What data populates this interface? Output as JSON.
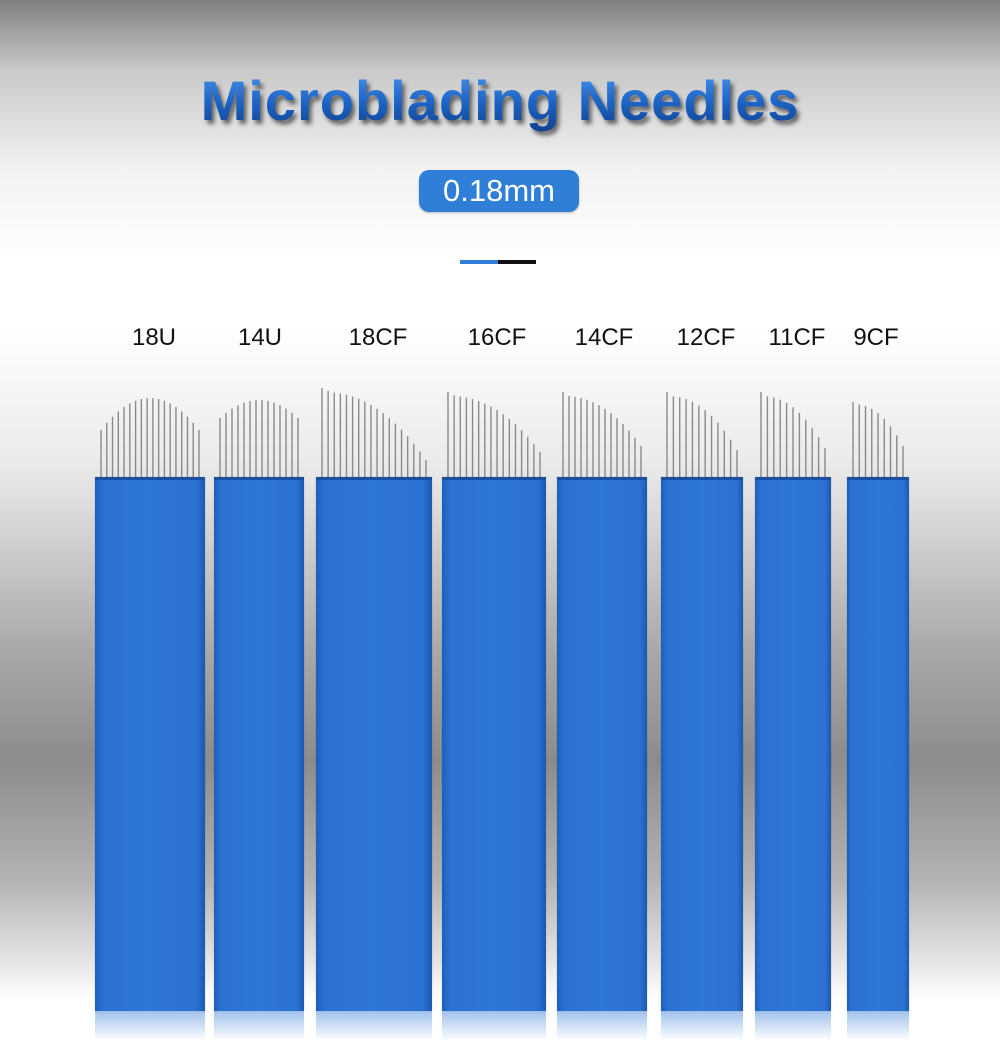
{
  "header": {
    "title": "Microblading Needles",
    "size_badge": "0.18mm"
  },
  "colors": {
    "accent_blue": "#2f7ed8",
    "blade_blue": "#2f77d6",
    "needle_gray": "#8a8a8a",
    "divider_black": "#111111"
  },
  "blades": [
    {
      "label": "18U",
      "needle_count": 18
    },
    {
      "label": "14U",
      "needle_count": 14
    },
    {
      "label": "18CF",
      "needle_count": 18
    },
    {
      "label": "16CF",
      "needle_count": 16
    },
    {
      "label": "14CF",
      "needle_count": 14
    },
    {
      "label": "12CF",
      "needle_count": 12
    },
    {
      "label": "11CF",
      "needle_count": 11
    },
    {
      "label": "9CF",
      "needle_count": 9
    }
  ]
}
